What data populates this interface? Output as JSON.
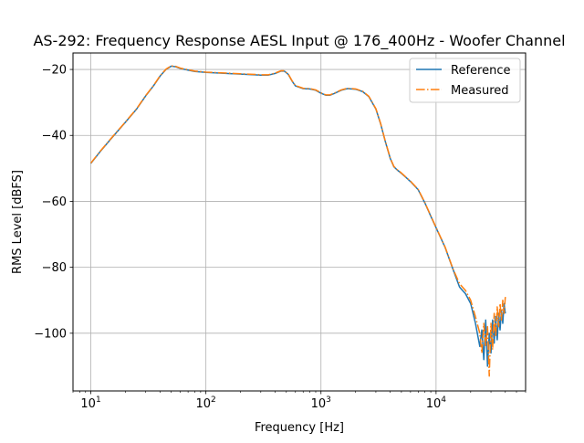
{
  "chart_data": {
    "type": "line",
    "title": "AS-292: Frequency Response AESL Input @ 176_400Hz - Woofer Channel",
    "xlabel": "Frequency [Hz]",
    "ylabel": "RMS Level [dBFS]",
    "xscale": "log",
    "xlim": [
      7,
      60000
    ],
    "ylim": [
      -117.5,
      -15
    ],
    "grid": true,
    "legend_position": "upper right",
    "x_ticks": [
      {
        "value": 10,
        "base": "10",
        "exp": "1"
      },
      {
        "value": 100,
        "base": "10",
        "exp": "2"
      },
      {
        "value": 1000,
        "base": "10",
        "exp": "3"
      },
      {
        "value": 10000,
        "base": "10",
        "exp": "4"
      }
    ],
    "y_ticks": [
      {
        "value": -20,
        "label": "−20"
      },
      {
        "value": -40,
        "label": "−40"
      },
      {
        "value": -60,
        "label": "−60"
      },
      {
        "value": -80,
        "label": "−80"
      },
      {
        "value": -100,
        "label": "−100"
      }
    ],
    "series": [
      {
        "name": "Reference",
        "color": "#1f77b4",
        "style": "solid",
        "x": [
          10,
          12,
          15,
          20,
          25,
          30,
          35,
          40,
          45,
          50,
          55,
          60,
          70,
          80,
          100,
          150,
          200,
          300,
          350,
          400,
          450,
          480,
          520,
          560,
          600,
          700,
          800,
          900,
          1000,
          1100,
          1200,
          1300,
          1500,
          1700,
          2000,
          2300,
          2600,
          3000,
          3300,
          3600,
          4000,
          4300,
          4600,
          5000,
          5500,
          6000,
          7000,
          8000,
          9000,
          10000,
          12000,
          14000,
          16000,
          18000,
          20000,
          22000,
          24000,
          25000,
          26000,
          27000,
          28000,
          29000,
          30000,
          31000,
          32000,
          33000,
          34000,
          35000,
          36000,
          37000,
          38000,
          39000,
          40000
        ],
        "y": [
          -48.5,
          -45,
          -41,
          -36,
          -32,
          -28,
          -25,
          -22,
          -20,
          -19,
          -19.2,
          -19.7,
          -20.2,
          -20.6,
          -20.9,
          -21.2,
          -21.4,
          -21.7,
          -21.7,
          -21.2,
          -20.5,
          -20.5,
          -21.5,
          -23.5,
          -25,
          -25.8,
          -25.9,
          -26.3,
          -27.2,
          -27.8,
          -27.8,
          -27.3,
          -26.3,
          -25.8,
          -26.0,
          -26.7,
          -28.2,
          -32,
          -36.5,
          -41.5,
          -47,
          -49.5,
          -50.5,
          -51.5,
          -52.8,
          -54.0,
          -56.5,
          -60.5,
          -64.5,
          -68,
          -74,
          -80.5,
          -86,
          -88,
          -91,
          -97,
          -104,
          -99,
          -108,
          -96,
          -110,
          -100,
          -106,
          -96,
          -103,
          -95,
          -102,
          -94,
          -99,
          -93,
          -97,
          -91,
          -94
        ]
      },
      {
        "name": "Measured",
        "color": "#ff7f0e",
        "style": "dashdot",
        "x": [
          10,
          12,
          15,
          20,
          25,
          30,
          35,
          40,
          45,
          50,
          55,
          60,
          70,
          80,
          100,
          150,
          200,
          300,
          350,
          400,
          450,
          480,
          520,
          560,
          600,
          700,
          800,
          900,
          1000,
          1100,
          1200,
          1300,
          1500,
          1700,
          2000,
          2300,
          2600,
          3000,
          3300,
          3600,
          4000,
          4300,
          4600,
          5000,
          5500,
          6000,
          7000,
          8000,
          9000,
          10000,
          12000,
          14000,
          16000,
          18000,
          20000,
          22000,
          24000,
          25000,
          26000,
          27000,
          28000,
          29000,
          30000,
          31000,
          32000,
          33000,
          34000,
          35000,
          36000,
          37000,
          38000,
          39000,
          40000
        ],
        "y": [
          -48.4,
          -44.9,
          -40.9,
          -35.9,
          -31.9,
          -27.9,
          -24.9,
          -21.9,
          -19.9,
          -18.9,
          -19.1,
          -19.6,
          -20.1,
          -20.5,
          -20.8,
          -21.1,
          -21.3,
          -21.6,
          -21.6,
          -21.1,
          -20.4,
          -20.4,
          -21.4,
          -23.4,
          -24.9,
          -25.7,
          -25.8,
          -26.2,
          -27.1,
          -27.7,
          -27.7,
          -27.2,
          -26.2,
          -25.7,
          -25.9,
          -26.6,
          -28.1,
          -31.9,
          -36.4,
          -41.4,
          -46.9,
          -49.4,
          -50.4,
          -51.4,
          -52.7,
          -53.9,
          -56.4,
          -60.4,
          -64.4,
          -67.9,
          -73.9,
          -80.4,
          -85,
          -87,
          -90,
          -95,
          -100,
          -106,
          -97,
          -104,
          -98,
          -113,
          -97,
          -105,
          -94,
          -101,
          -92,
          -98,
          -91,
          -96,
          -90,
          -94,
          -89
        ]
      }
    ]
  }
}
